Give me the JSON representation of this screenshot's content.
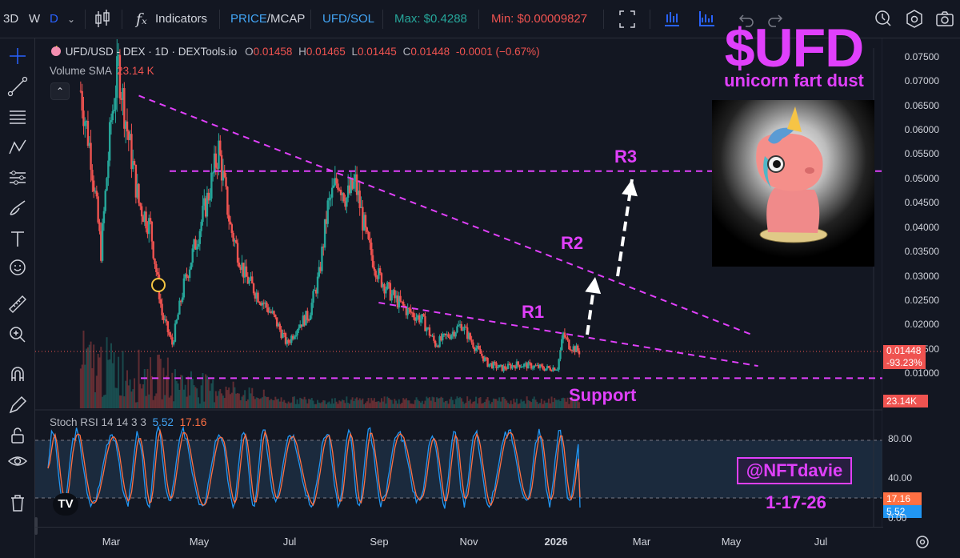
{
  "toolbar": {
    "interval_3d": "3D",
    "interval_w": "W",
    "interval_d": "D",
    "indicators_label": "Indicators",
    "price_label": "PRICE",
    "mcap_label": "/MCAP",
    "pair_toggle": "UFD/SOL",
    "max_label": "Max: $0.4288",
    "min_label": "Min: $0.00009827"
  },
  "legend": {
    "symbol": "UFD/USD - DEX · 1D · DEXTools.io",
    "o_label": "O",
    "o_value": "0.01458",
    "h_label": "H",
    "h_value": "0.01465",
    "l_label": "L",
    "l_value": "0.01445",
    "c_label": "C",
    "c_value": "0.01448",
    "change": "-0.0001 (−0.67%)",
    "volume_label": "Volume SMA",
    "volume_value": "23.14 K",
    "rsi_label": "Stoch RSI 14 14 3 3",
    "rsi_k": "5.52",
    "rsi_d": "17.16"
  },
  "overlay": {
    "title": "$UFD",
    "subtitle": "unicorn fart dust",
    "handle": "@NFTdavie",
    "date": "1-17-26",
    "labels": {
      "r1": "R1",
      "r2": "R2",
      "r3": "R3",
      "support": "Support"
    }
  },
  "price_badges": {
    "last_price": "0.01448",
    "change_pct": "-93.23%",
    "volume": "23.14K",
    "rsi_d": "17.16",
    "rsi_k": "5.52"
  },
  "rsi_axis": {
    "ticks": [
      "80.00",
      "40.00",
      "0.00"
    ]
  },
  "colors": {
    "background": "#131722",
    "up": "#26a69a",
    "down": "#ef5350",
    "annotation": "#e040fb",
    "rsi_k": "#2196f3",
    "rsi_d": "#ff7043"
  },
  "icons": [
    "crosshair-icon",
    "trendline-icon",
    "fib-icon",
    "pattern-icon",
    "prediction-icon",
    "brush-icon",
    "text-icon",
    "emoji-icon",
    "ruler-icon",
    "zoom-icon",
    "magnet-icon",
    "lock-drawing-icon",
    "lock-icon",
    "eye-icon",
    "trash-icon",
    "candles-icon",
    "fx-icon",
    "fullscreen-icon",
    "undo-icon",
    "redo-icon",
    "alert-icon",
    "replay-icon",
    "settings-icon",
    "camera-icon",
    "gear-icon"
  ],
  "chart_data": {
    "type": "candlestick",
    "symbol": "UFD/USD",
    "interval": "1D",
    "y_axis": {
      "scale": "linear",
      "range": [
        0.005,
        0.0775
      ],
      "ticks": [
        "0.07500",
        "0.07000",
        "0.06500",
        "0.06000",
        "0.05500",
        "0.05000",
        "0.04500",
        "0.04000",
        "0.03500",
        "0.03000",
        "0.02500",
        "0.02000",
        "0.01500",
        "0.01000"
      ]
    },
    "x_axis": {
      "ticks": [
        "Mar",
        "May",
        "Jul",
        "Sep",
        "Nov",
        "2026",
        "Mar",
        "May",
        "Jul"
      ]
    },
    "close_series": [
      {
        "x": "2025-02-08",
        "close": 0.068
      },
      {
        "x": "2025-02-15",
        "close": 0.055
      },
      {
        "x": "2025-02-22",
        "close": 0.035
      },
      {
        "x": "2025-03-01",
        "close": 0.062
      },
      {
        "x": "2025-03-06",
        "close": 0.073
      },
      {
        "x": "2025-03-12",
        "close": 0.06
      },
      {
        "x": "2025-03-20",
        "close": 0.045
      },
      {
        "x": "2025-03-28",
        "close": 0.04
      },
      {
        "x": "2025-04-05",
        "close": 0.022
      },
      {
        "x": "2025-04-12",
        "close": 0.016
      },
      {
        "x": "2025-04-20",
        "close": 0.028
      },
      {
        "x": "2025-05-01",
        "close": 0.04
      },
      {
        "x": "2025-05-08",
        "close": 0.048
      },
      {
        "x": "2025-05-14",
        "close": 0.056
      },
      {
        "x": "2025-05-22",
        "close": 0.04
      },
      {
        "x": "2025-06-01",
        "close": 0.03
      },
      {
        "x": "2025-06-10",
        "close": 0.026
      },
      {
        "x": "2025-06-20",
        "close": 0.022
      },
      {
        "x": "2025-06-30",
        "close": 0.016
      },
      {
        "x": "2025-07-08",
        "close": 0.02
      },
      {
        "x": "2025-07-15",
        "close": 0.022
      },
      {
        "x": "2025-07-22",
        "close": 0.03
      },
      {
        "x": "2025-07-28",
        "close": 0.044
      },
      {
        "x": "2025-08-04",
        "close": 0.05
      },
      {
        "x": "2025-08-10",
        "close": 0.046
      },
      {
        "x": "2025-08-16",
        "close": 0.049
      },
      {
        "x": "2025-08-24",
        "close": 0.037
      },
      {
        "x": "2025-09-01",
        "close": 0.03
      },
      {
        "x": "2025-09-10",
        "close": 0.026
      },
      {
        "x": "2025-09-20",
        "close": 0.023
      },
      {
        "x": "2025-10-01",
        "close": 0.021
      },
      {
        "x": "2025-10-10",
        "close": 0.016
      },
      {
        "x": "2025-10-20",
        "close": 0.018
      },
      {
        "x": "2025-10-28",
        "close": 0.02
      },
      {
        "x": "2025-11-05",
        "close": 0.016
      },
      {
        "x": "2025-11-15",
        "close": 0.012
      },
      {
        "x": "2025-11-25",
        "close": 0.011
      },
      {
        "x": "2025-12-05",
        "close": 0.0118
      },
      {
        "x": "2025-12-15",
        "close": 0.0115
      },
      {
        "x": "2025-12-25",
        "close": 0.011
      },
      {
        "x": "2026-01-02",
        "close": 0.0112
      },
      {
        "x": "2026-01-06",
        "close": 0.018
      },
      {
        "x": "2026-01-10",
        "close": 0.0158
      },
      {
        "x": "2026-01-17",
        "close": 0.01448
      }
    ],
    "volume_sma": 23140,
    "stoch_rsi": {
      "k": 5.52,
      "d": 17.16,
      "bands": [
        80,
        20
      ]
    },
    "annotations": [
      {
        "label": "R3",
        "type": "horizontal",
        "price": 0.0515
      },
      {
        "label": "R2",
        "type": "descending trendline",
        "from": {
          "x": "2025-03-20",
          "price": 0.067
        },
        "to": {
          "x": "2026-05-15",
          "price": 0.018
        }
      },
      {
        "label": "R1",
        "type": "descending trendline",
        "from": {
          "x": "2025-09-01",
          "price": 0.0245
        },
        "to": {
          "x": "2026-05-20",
          "price": 0.0115
        }
      },
      {
        "label": "Support",
        "type": "horizontal",
        "price": 0.009
      }
    ]
  }
}
